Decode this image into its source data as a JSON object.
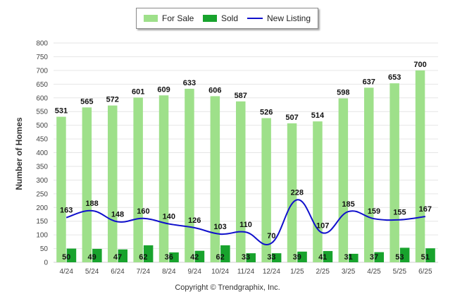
{
  "legend": {
    "for_sale": "For Sale",
    "sold": "Sold",
    "new_listing": "New Listing"
  },
  "footer": {
    "copyright": "Copyright © Trendgraphix, Inc."
  },
  "colors": {
    "for_sale": "#9ee08a",
    "sold": "#18a32d",
    "new_listing": "#1010cc",
    "grid": "#e6e6e6"
  },
  "chart_data": {
    "type": "bar",
    "categories": [
      "4/24",
      "5/24",
      "6/24",
      "7/24",
      "8/24",
      "9/24",
      "10/24",
      "11/24",
      "12/24",
      "1/25",
      "2/25",
      "3/25",
      "4/25",
      "5/25",
      "6/25"
    ],
    "series": [
      {
        "name": "For Sale",
        "type": "bar",
        "values": [
          531,
          565,
          572,
          601,
          609,
          633,
          606,
          587,
          526,
          507,
          514,
          598,
          637,
          653,
          700
        ]
      },
      {
        "name": "Sold",
        "type": "bar",
        "values": [
          50,
          49,
          47,
          62,
          36,
          42,
          62,
          33,
          33,
          39,
          41,
          31,
          37,
          53,
          51
        ]
      },
      {
        "name": "New Listing",
        "type": "line",
        "values": [
          163,
          188,
          148,
          160,
          140,
          126,
          103,
          110,
          70,
          228,
          107,
          185,
          159,
          155,
          167
        ]
      }
    ],
    "ylabel": "Number of Homes",
    "xlabel": "",
    "ylim": [
      0,
      800
    ],
    "yticks": [
      0,
      50,
      100,
      150,
      200,
      250,
      300,
      350,
      400,
      450,
      500,
      550,
      600,
      650,
      700,
      750,
      800
    ],
    "grid": true,
    "legend_position": "top"
  }
}
